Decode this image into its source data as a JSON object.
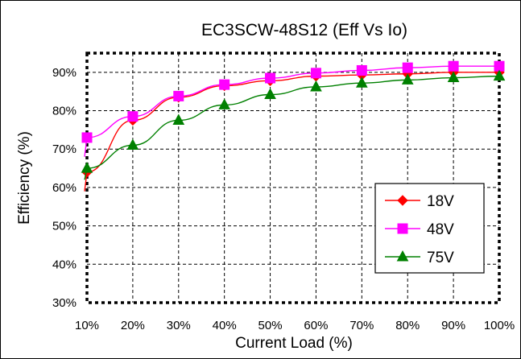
{
  "chart_data": {
    "type": "line",
    "title": "EC3SCW-48S12  (Eff Vs Io)",
    "xlabel": "Current Load (%)",
    "ylabel": "Efficiency (%)",
    "x": [
      10,
      20,
      30,
      40,
      50,
      60,
      70,
      80,
      90,
      100
    ],
    "x_tick_labels": [
      "10%",
      "20%",
      "30%",
      "40%",
      "50%",
      "60%",
      "70%",
      "80%",
      "90%",
      "100%"
    ],
    "y_tick_values": [
      30,
      40,
      50,
      60,
      70,
      80,
      90
    ],
    "y_tick_labels": [
      "30%",
      "40%",
      "50%",
      "60%",
      "70%",
      "80%",
      "90%"
    ],
    "xlim": [
      10,
      100
    ],
    "ylim": [
      30,
      95
    ],
    "grid": true,
    "legend_position": "bottom-right",
    "series": [
      {
        "name": "18V",
        "color": "#ff0000",
        "marker": "diamond",
        "start_value": 59,
        "values": [
          64,
          77.5,
          83.5,
          86.5,
          87.8,
          89,
          89.3,
          89.6,
          90,
          90
        ]
      },
      {
        "name": "48V",
        "color": "#ff00ff",
        "marker": "square",
        "start_value": 68,
        "values": [
          73,
          78.5,
          83.8,
          86.8,
          88.5,
          89.8,
          90.5,
          91.2,
          91.6,
          91.6
        ]
      },
      {
        "name": "75V",
        "color": "#008000",
        "marker": "triangle",
        "start_value": 62,
        "values": [
          65,
          71,
          77.5,
          81.5,
          84.2,
          86.2,
          87.2,
          88,
          88.6,
          89
        ]
      }
    ]
  }
}
